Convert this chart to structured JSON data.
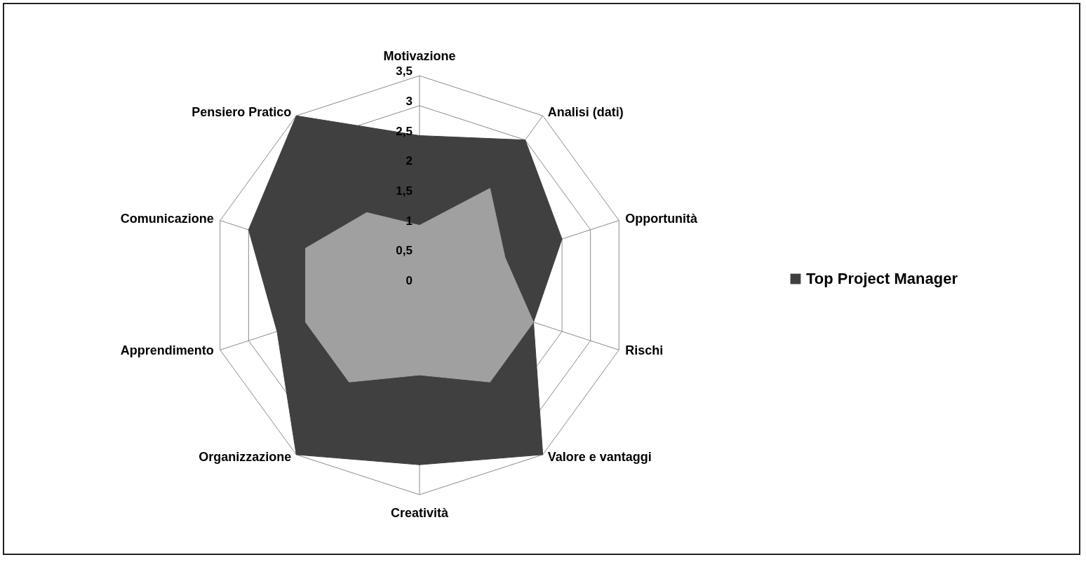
{
  "chart_data": {
    "type": "radar",
    "categories": [
      "Motivazione",
      "Analisi (dati)",
      "Opportunità",
      "Rischi",
      "Valore  e vantaggi",
      "Creatività",
      "Organizzazione",
      "Apprendimento",
      "Comunicazione",
      "Pensiero Pratico"
    ],
    "series": [
      {
        "name": "Top Project Manager",
        "color": "#404040",
        "values": [
          2.5,
          3,
          2.5,
          2,
          3.5,
          3,
          3.5,
          2.5,
          3,
          3.5
        ]
      },
      {
        "color": "#a0a0a0",
        "values": [
          1,
          2,
          1.5,
          2,
          2,
          1.5,
          2,
          2,
          2,
          1.5
        ]
      }
    ],
    "ylim": [
      0,
      3.5
    ],
    "yticks": [
      0,
      {
        "value": 0.5,
        "label": "0,5"
      },
      1,
      {
        "value": 1.5,
        "label": "1,5"
      },
      2,
      {
        "value": 2.5,
        "label": "2,5"
      },
      3,
      {
        "value": 3.5,
        "label": "3,5"
      }
    ],
    "grid": true,
    "legend": "right",
    "marker": "none"
  }
}
